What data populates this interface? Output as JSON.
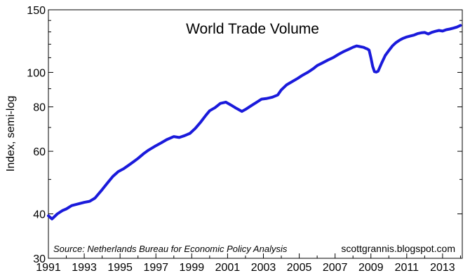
{
  "chart_data": {
    "type": "line",
    "title": "World Trade Volume",
    "ylabel": "Index, semi-log",
    "xlabel": "",
    "yscale": "log",
    "ylim": [
      30,
      150
    ],
    "xlim": [
      1991.0,
      2014.1
    ],
    "yticks": [
      30,
      40,
      60,
      80,
      100,
      150
    ],
    "yminor_ticks": [
      50,
      70,
      90,
      110,
      120,
      130,
      140
    ],
    "xticks": [
      1991,
      1993,
      1995,
      1997,
      1999,
      2001,
      2003,
      2005,
      2007,
      2009,
      2011,
      2013
    ],
    "ytick_labels": [
      "30",
      "40",
      "60",
      "80",
      "100",
      "150"
    ],
    "xtick_labels": [
      "1991",
      "1993",
      "1995",
      "1997",
      "1999",
      "2001",
      "2003",
      "2005",
      "2007",
      "2009",
      "2011",
      "2013"
    ],
    "grid": false,
    "legend": "none",
    "source_note": "Source: Netherlands Bureau for Economic Policy Analysis",
    "credit": "scottgrannis.blogspot.com",
    "line_color": "#1a1adb",
    "series": [
      {
        "x": [
          1991.0,
          1991.2,
          1991.5,
          1991.8,
          1992.0,
          1992.3,
          1992.6,
          1993.0,
          1993.3,
          1993.6,
          1994.0,
          1994.3,
          1994.6,
          1994.9,
          1995.2,
          1995.5,
          1995.8,
          1996.0,
          1996.3,
          1996.6,
          1997.0,
          1997.3,
          1997.6,
          1998.0,
          1998.3,
          1998.6,
          1998.9,
          1999.2,
          1999.5,
          1999.8,
          2000.0,
          2000.3,
          2000.6,
          2000.9,
          2001.2,
          2001.5,
          2001.8,
          2002.0,
          2002.3,
          2002.6,
          2002.9,
          2003.2,
          2003.5,
          2003.8,
          2004.0,
          2004.3,
          2004.6,
          2004.9,
          2005.2,
          2005.5,
          2005.8,
          2006.0,
          2006.3,
          2006.6,
          2006.9,
          2007.2,
          2007.5,
          2007.8,
          2008.0,
          2008.2,
          2008.4,
          2008.6,
          2008.7,
          2008.8,
          2008.9,
          2009.0,
          2009.1,
          2009.2,
          2009.3,
          2009.4,
          2009.6,
          2009.8,
          2010.0,
          2010.2,
          2010.4,
          2010.6,
          2010.8,
          2011.0,
          2011.2,
          2011.4,
          2011.6,
          2011.8,
          2012.0,
          2012.2,
          2012.4,
          2012.6,
          2012.8,
          2013.0,
          2013.2,
          2013.4,
          2013.6,
          2013.8,
          2014.0
        ],
        "values": [
          39.5,
          38.7,
          40.0,
          40.9,
          41.3,
          42.2,
          42.6,
          43.1,
          43.4,
          44.3,
          46.8,
          48.9,
          51.0,
          52.6,
          53.6,
          54.9,
          56.3,
          57.3,
          59.0,
          60.5,
          62.2,
          63.4,
          64.7,
          66.0,
          65.6,
          66.4,
          67.4,
          69.6,
          72.5,
          75.9,
          78.0,
          79.6,
          81.8,
          82.5,
          80.9,
          79.2,
          77.7,
          78.7,
          80.5,
          82.3,
          84.1,
          84.5,
          85.2,
          86.4,
          89.3,
          92.3,
          94.2,
          96.1,
          98.3,
          100.2,
          102.6,
          104.5,
          106.4,
          108.3,
          110.1,
          112.5,
          114.6,
          116.4,
          117.7,
          118.7,
          118.2,
          117.6,
          116.9,
          116.4,
          115.5,
          110.0,
          103.9,
          100.5,
          100.2,
          100.8,
          106.3,
          111.6,
          115.2,
          118.7,
          121.3,
          123.2,
          124.7,
          125.8,
          126.6,
          127.3,
          128.5,
          129.2,
          129.5,
          128.3,
          129.6,
          130.5,
          131.2,
          130.7,
          131.8,
          132.4,
          133.2,
          134.1,
          135.6
        ]
      }
    ]
  }
}
